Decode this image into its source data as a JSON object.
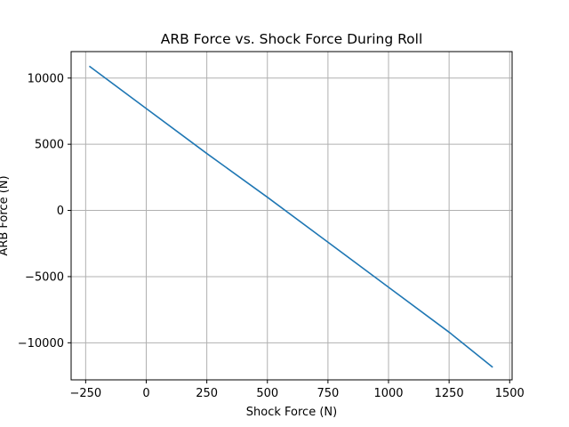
{
  "chart_data": {
    "type": "line",
    "title": "ARB Force vs. Shock Force During Roll",
    "xlabel": "Shock Force (N)",
    "ylabel": "ARB Force (N)",
    "xlim": [
      -310,
      1510
    ],
    "ylim": [
      -12800,
      12000
    ],
    "xticks": [
      -250,
      0,
      250,
      500,
      750,
      1000,
      1250,
      1500
    ],
    "yticks": [
      -10000,
      -5000,
      0,
      5000,
      10000
    ],
    "xtick_labels": [
      "−250",
      "0",
      "250",
      "500",
      "750",
      "1000",
      "1250",
      "1500"
    ],
    "ytick_labels": [
      "−10000",
      "−5000",
      "0",
      "5000",
      "10000"
    ],
    "grid": true,
    "series": [
      {
        "color": "#1f77b4",
        "x": [
          -235,
          0,
          250,
          500,
          750,
          1000,
          1250,
          1430
        ],
        "y": [
          10900,
          7700,
          4300,
          1000,
          -2400,
          -5800,
          -9200,
          -11850
        ]
      }
    ]
  }
}
